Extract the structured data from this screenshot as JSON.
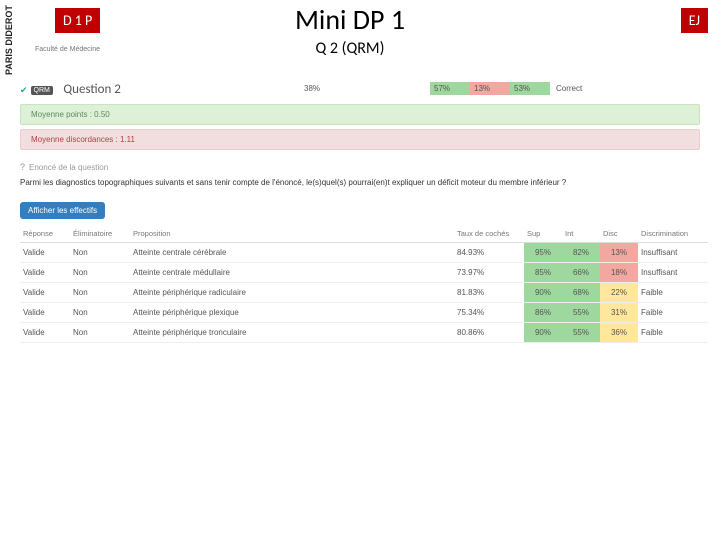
{
  "header": {
    "left_stripe": "PARIS DIDEROT",
    "faculty": "Faculté de Médecine",
    "tag_left": "D 1 P",
    "tag_right": "EJ",
    "title": "Mini DP 1",
    "subtitle": "Q 2 (QRM)"
  },
  "question_row": {
    "qrm_badge": "QRM",
    "label": "Question 2",
    "strip": [
      {
        "text": "38%",
        "bg": "#ffffff"
      },
      {
        "text": "57%",
        "bg": "#9fd89f"
      },
      {
        "text": "13%",
        "bg": "#f2a7a0"
      },
      {
        "text": "53%",
        "bg": "#9fd89f"
      }
    ],
    "correct": "Correct"
  },
  "banners": {
    "points": "Moyenne points : 0.50",
    "discord": "Moyenne discordances : 1.11"
  },
  "prompt": {
    "head": "Enoncé de la question",
    "text": "Parmi les diagnostics topographiques suivants et sans tenir compte de l'énoncé, le(s)quel(s) pourrai(en)t expliquer un déficit moteur du membre inférieur ?"
  },
  "button": "Afficher les effectifs",
  "table": {
    "columns": [
      "Réponse",
      "Éliminatoire",
      "Proposition",
      "Taux de cochés",
      "Sup",
      "Int",
      "Disc",
      "Discrimination"
    ],
    "rows": [
      {
        "reponse": "Valide",
        "elim": "Non",
        "prop": "Atteinte centrale cérébrale",
        "taux": "84.93%",
        "sup": {
          "v": "95%",
          "bg": "#9fd89f"
        },
        "int": {
          "v": "82%",
          "bg": "#9fd89f"
        },
        "disc": {
          "v": "13%",
          "bg": "#f2a7a0"
        },
        "discr": "Insuffisant"
      },
      {
        "reponse": "Valide",
        "elim": "Non",
        "prop": "Atteinte centrale médullaire",
        "taux": "73.97%",
        "sup": {
          "v": "85%",
          "bg": "#9fd89f"
        },
        "int": {
          "v": "66%",
          "bg": "#9fd89f"
        },
        "disc": {
          "v": "18%",
          "bg": "#f2a7a0"
        },
        "discr": "Insuffisant"
      },
      {
        "reponse": "Valide",
        "elim": "Non",
        "prop": "Atteinte périphérique radiculaire",
        "taux": "81.83%",
        "sup": {
          "v": "90%",
          "bg": "#9fd89f"
        },
        "int": {
          "v": "68%",
          "bg": "#9fd89f"
        },
        "disc": {
          "v": "22%",
          "bg": "#ffe79b"
        },
        "discr": "Faible"
      },
      {
        "reponse": "Valide",
        "elim": "Non",
        "prop": "Atteinte périphérique plexique",
        "taux": "75.34%",
        "sup": {
          "v": "86%",
          "bg": "#9fd89f"
        },
        "int": {
          "v": "55%",
          "bg": "#9fd89f"
        },
        "disc": {
          "v": "31%",
          "bg": "#ffe79b"
        },
        "discr": "Faible"
      },
      {
        "reponse": "Valide",
        "elim": "Non",
        "prop": "Atteinte périphérique tronculaire",
        "taux": "80.86%",
        "sup": {
          "v": "90%",
          "bg": "#9fd89f"
        },
        "int": {
          "v": "55%",
          "bg": "#9fd89f"
        },
        "disc": {
          "v": "36%",
          "bg": "#ffe79b"
        },
        "discr": "Faible"
      }
    ]
  }
}
